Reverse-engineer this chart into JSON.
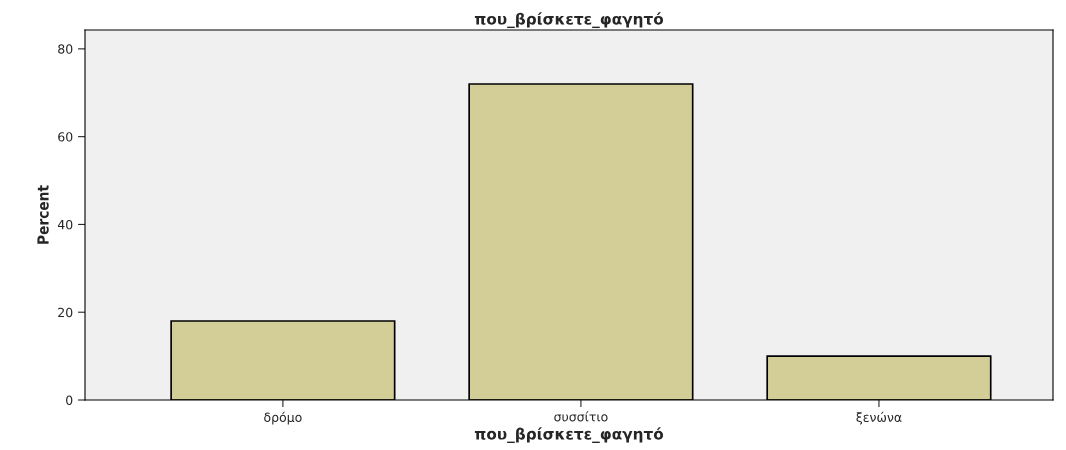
{
  "chart_data": {
    "type": "bar",
    "title": "που_βρίσκετε_φαγητό",
    "xlabel": "που_βρίσκετε_φαγητό",
    "ylabel": "Percent",
    "categories": [
      "δρόμο",
      "συσσίτιο",
      "ξενώνα"
    ],
    "values": [
      18,
      72,
      10
    ],
    "color": "#d3ce97",
    "ylim": [
      0,
      84.3
    ],
    "yticks": [
      0,
      20,
      40,
      60,
      80
    ],
    "grid": false
  }
}
